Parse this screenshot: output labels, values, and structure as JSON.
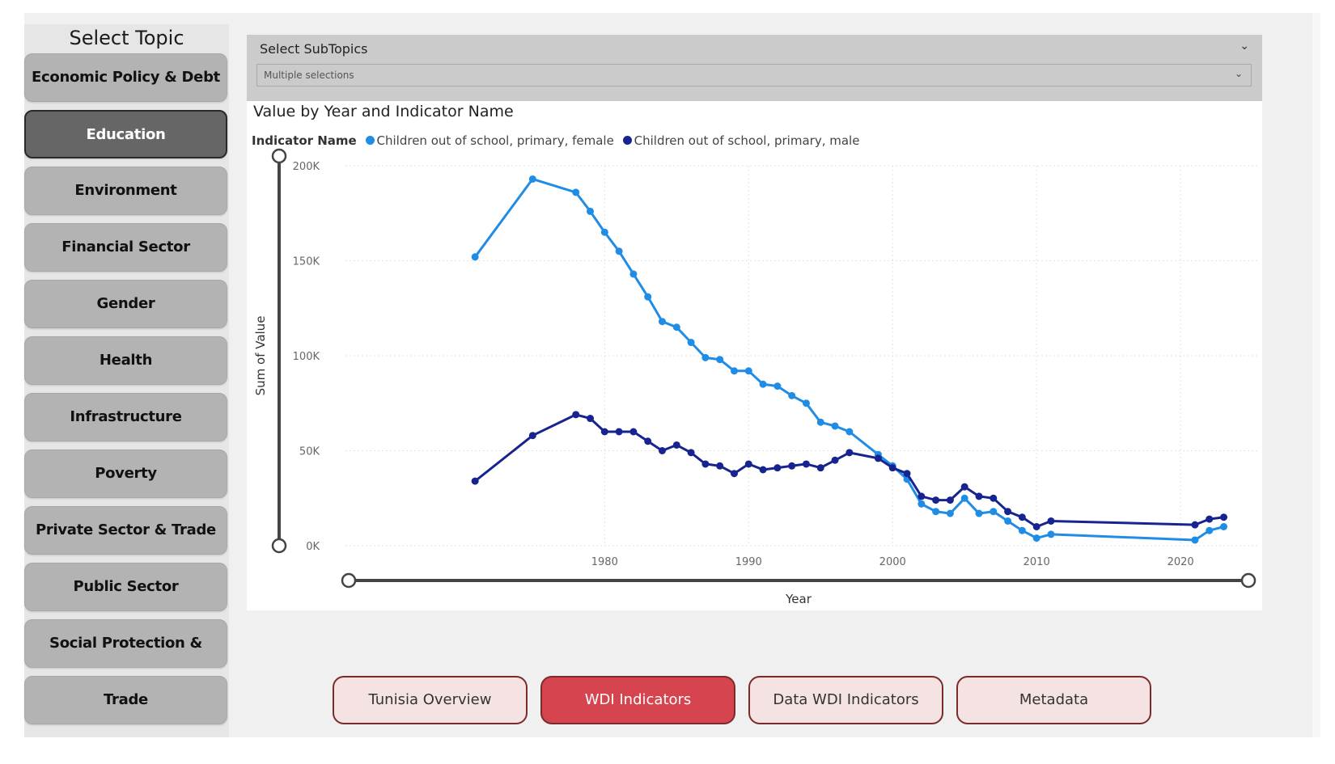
{
  "sidebar": {
    "title": "Select Topic",
    "items": [
      {
        "label": "Economic Policy & Debt"
      },
      {
        "label": "Education"
      },
      {
        "label": "Environment"
      },
      {
        "label": "Financial Sector"
      },
      {
        "label": "Gender"
      },
      {
        "label": "Health"
      },
      {
        "label": "Infrastructure"
      },
      {
        "label": "Poverty"
      },
      {
        "label": "Private Sector & Trade"
      },
      {
        "label": "Public Sector"
      },
      {
        "label": "Social Protection & Labor"
      },
      {
        "label": "Trade"
      }
    ],
    "active_item": "Education"
  },
  "subtopics": {
    "label": "Select SubTopics",
    "value": "Multiple selections"
  },
  "legend": {
    "title": "Indicator Name"
  },
  "nav": {
    "buttons": [
      {
        "label": "Tunisia Overview"
      },
      {
        "label": "WDI Indicators"
      },
      {
        "label": "Data WDI Indicators"
      },
      {
        "label": "Metadata"
      }
    ],
    "active": "WDI Indicators"
  },
  "colors": {
    "female": "#1f8ce6",
    "male": "#17248f",
    "active_topic": "#666666",
    "active_nav": "#d6454f"
  },
  "chart_data": {
    "type": "line",
    "title": "Value by Year and Indicator Name",
    "xlabel": "Year",
    "ylabel": "Sum of Value",
    "ylim": [
      0,
      200000
    ],
    "yticks": [
      "0K",
      "50K",
      "100K",
      "150K",
      "200K"
    ],
    "xticks": [
      "1980",
      "1990",
      "2000",
      "2010",
      "2020"
    ],
    "grid": true,
    "legend_position": "top",
    "series": [
      {
        "name": "Children out of school, primary, female",
        "x": [
          1971,
          1975,
          1978,
          1979,
          1980,
          1981,
          1982,
          1983,
          1984,
          1985,
          1986,
          1987,
          1988,
          1989,
          1990,
          1991,
          1992,
          1993,
          1994,
          1995,
          1996,
          1997,
          1999,
          2000,
          2001,
          2002,
          2003,
          2004,
          2005,
          2006,
          2007,
          2008,
          2009,
          2010,
          2011,
          2021,
          2022,
          2023
        ],
        "values": [
          152000,
          193000,
          186000,
          176000,
          165000,
          155000,
          143000,
          131000,
          118000,
          115000,
          107000,
          99000,
          98000,
          92000,
          92000,
          85000,
          84000,
          79000,
          75000,
          65000,
          63000,
          60000,
          48000,
          42000,
          35000,
          22000,
          18000,
          17000,
          25000,
          17000,
          18000,
          13000,
          8000,
          4000,
          6000,
          3000,
          8000,
          10000
        ]
      },
      {
        "name": "Children out of school, primary, male",
        "x": [
          1971,
          1975,
          1978,
          1979,
          1980,
          1981,
          1982,
          1983,
          1984,
          1985,
          1986,
          1987,
          1988,
          1989,
          1990,
          1991,
          1992,
          1993,
          1994,
          1995,
          1996,
          1997,
          1999,
          2000,
          2001,
          2002,
          2003,
          2004,
          2005,
          2006,
          2007,
          2008,
          2009,
          2010,
          2011,
          2021,
          2022,
          2023
        ],
        "values": [
          34000,
          58000,
          69000,
          67000,
          60000,
          60000,
          60000,
          55000,
          50000,
          53000,
          49000,
          43000,
          42000,
          38000,
          43000,
          40000,
          41000,
          42000,
          43000,
          41000,
          45000,
          49000,
          46000,
          41000,
          38000,
          26000,
          24000,
          24000,
          31000,
          26000,
          25000,
          18000,
          15000,
          10000,
          13000,
          11000,
          14000,
          15000
        ]
      }
    ]
  }
}
